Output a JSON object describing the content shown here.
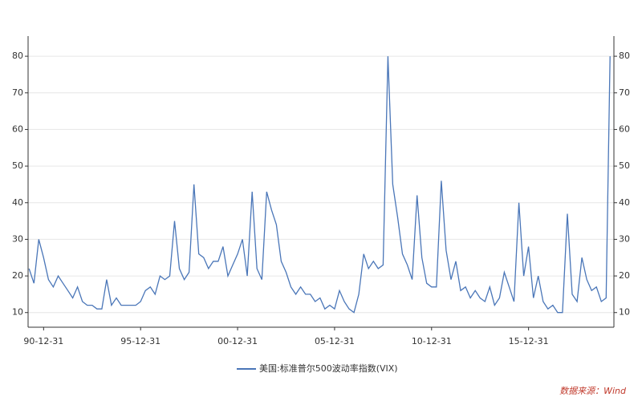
{
  "chart_data": {
    "type": "line",
    "x": [
      1990.25,
      1990.5,
      1990.75,
      1991.0,
      1991.25,
      1991.5,
      1991.75,
      1992.0,
      1992.25,
      1992.5,
      1992.75,
      1993.0,
      1993.25,
      1993.5,
      1993.75,
      1994.0,
      1994.25,
      1994.5,
      1994.75,
      1995.0,
      1995.25,
      1995.5,
      1995.75,
      1996.0,
      1996.25,
      1996.5,
      1996.75,
      1997.0,
      1997.25,
      1997.5,
      1997.75,
      1998.0,
      1998.25,
      1998.5,
      1998.75,
      1999.0,
      1999.25,
      1999.5,
      1999.75,
      2000.0,
      2000.25,
      2000.5,
      2000.75,
      2001.0,
      2001.25,
      2001.5,
      2001.75,
      2002.0,
      2002.25,
      2002.5,
      2002.75,
      2003.0,
      2003.25,
      2003.5,
      2003.75,
      2004.0,
      2004.25,
      2004.5,
      2004.75,
      2005.0,
      2005.25,
      2005.5,
      2005.75,
      2006.0,
      2006.25,
      2006.5,
      2006.75,
      2007.0,
      2007.25,
      2007.5,
      2007.75,
      2008.0,
      2008.25,
      2008.5,
      2008.75,
      2009.0,
      2009.25,
      2009.5,
      2009.75,
      2010.0,
      2010.25,
      2010.5,
      2010.75,
      2011.0,
      2011.25,
      2011.5,
      2011.75,
      2012.0,
      2012.25,
      2012.5,
      2012.75,
      2013.0,
      2013.25,
      2013.5,
      2013.75,
      2014.0,
      2014.25,
      2014.5,
      2014.75,
      2015.0,
      2015.25,
      2015.5,
      2015.75,
      2016.0,
      2016.25,
      2016.5,
      2016.75,
      2017.0,
      2017.25,
      2017.5,
      2017.75,
      2018.0,
      2018.25,
      2018.5,
      2018.75,
      2019.0,
      2019.25,
      2019.5,
      2019.75,
      2020.0,
      2020.2
    ],
    "series": [
      {
        "name": "美国:标准普尔500波动率指数(VIX)",
        "color": "#4a76b8",
        "values": [
          22,
          18,
          30,
          25,
          19,
          17,
          20,
          18,
          16,
          14,
          17,
          13,
          12,
          12,
          11,
          11,
          19,
          12,
          14,
          12,
          12,
          12,
          12,
          13,
          16,
          17,
          15,
          20,
          19,
          20,
          35,
          22,
          19,
          21,
          45,
          26,
          25,
          22,
          24,
          24,
          28,
          20,
          23,
          26,
          30,
          20,
          43,
          22,
          19,
          43,
          38,
          34,
          24,
          21,
          17,
          15,
          17,
          15,
          15,
          13,
          14,
          11,
          12,
          11,
          16,
          13,
          11,
          10,
          15,
          26,
          22,
          24,
          22,
          23,
          80,
          45,
          36,
          26,
          23,
          19,
          42,
          25,
          18,
          17,
          17,
          46,
          27,
          19,
          24,
          16,
          17,
          14,
          16,
          14,
          13,
          17,
          12,
          14,
          21,
          17,
          13,
          40,
          20,
          28,
          14,
          20,
          13,
          11,
          12,
          10,
          10,
          37,
          15,
          13,
          25,
          19,
          16,
          17,
          13,
          14,
          80
        ]
      }
    ],
    "xlim": [
      1990.2,
      2020.4
    ],
    "xticks": [
      {
        "value": 1991.0,
        "label": "90-12-31"
      },
      {
        "value": 1996.0,
        "label": "95-12-31"
      },
      {
        "value": 2001.0,
        "label": "00-12-31"
      },
      {
        "value": 2006.0,
        "label": "05-12-31"
      },
      {
        "value": 2011.0,
        "label": "10-12-31"
      },
      {
        "value": 2016.0,
        "label": "15-12-31"
      }
    ],
    "ylim": [
      6,
      85.5
    ],
    "yticks": [
      10,
      20,
      30,
      40,
      50,
      60,
      70,
      80
    ],
    "y2lim": [
      6,
      85.5
    ],
    "y2ticks": [
      10,
      20,
      30,
      40,
      50,
      60,
      70,
      80
    ],
    "grid": true,
    "legend": "bottom",
    "source": "数据来源：Wind"
  }
}
